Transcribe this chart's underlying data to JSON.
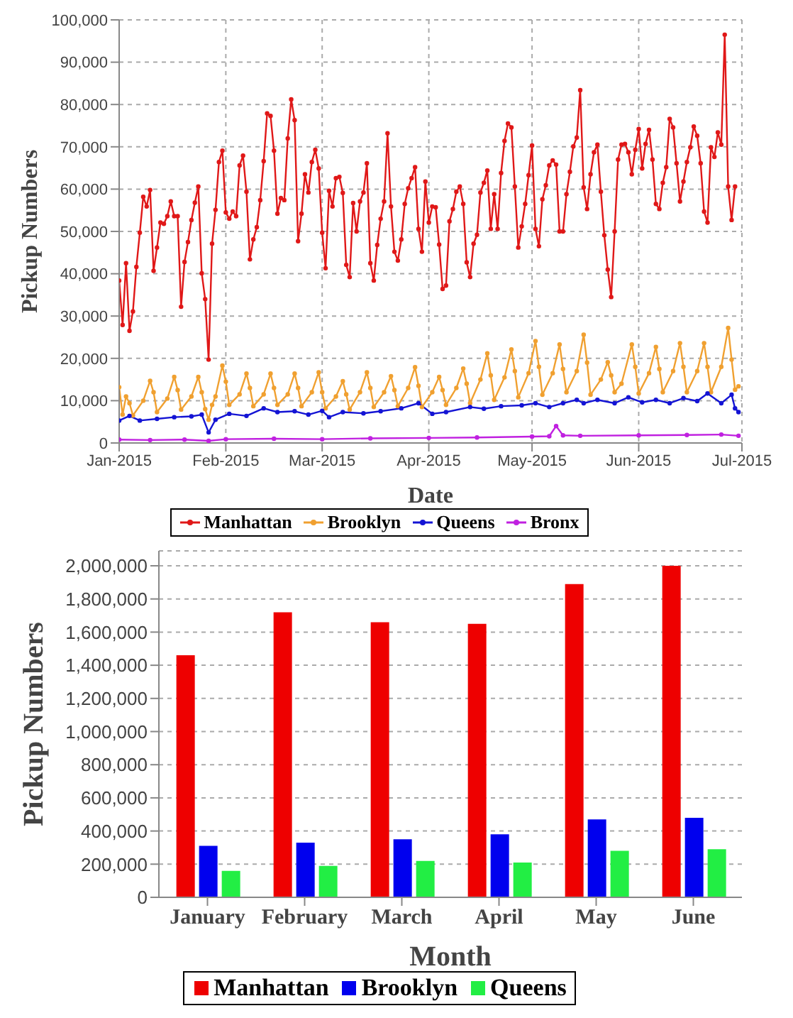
{
  "chart_data": [
    {
      "type": "line",
      "xlabel": "Date",
      "ylabel": "Pickup Numbers",
      "xlim": [
        "2015-01-01",
        "2015-07-01"
      ],
      "xticks": [
        {
          "value": "2015-01-01",
          "label": "Jan-2015"
        },
        {
          "value": "2015-02-01",
          "label": "Feb-2015"
        },
        {
          "value": "2015-03-01",
          "label": "Mar-2015"
        },
        {
          "value": "2015-04-01",
          "label": "Apr-2015"
        },
        {
          "value": "2015-05-01",
          "label": "May-2015"
        },
        {
          "value": "2015-06-01",
          "label": "Jun-2015"
        },
        {
          "value": "2015-07-01",
          "label": "Jul-2015"
        }
      ],
      "ylim": [
        0,
        100000
      ],
      "yticks": [
        0,
        {
          "value": 10000,
          "label": "10,000"
        },
        {
          "value": 20000,
          "label": "20,000"
        },
        {
          "value": 30000,
          "label": "30,000"
        },
        {
          "value": 40000,
          "label": "40,000"
        },
        {
          "value": 50000,
          "label": "50,000"
        },
        {
          "value": 60000,
          "label": "60,000"
        },
        {
          "value": 70000,
          "label": "70,000"
        },
        {
          "value": 80000,
          "label": "80,000"
        },
        {
          "value": 90000,
          "label": "90,000"
        },
        {
          "value": 100000,
          "label": "100,000"
        }
      ],
      "grid": true,
      "legend": "bottom",
      "marker": "circle",
      "x": [
        "2015-01-01",
        "2015-01-02",
        "2015-01-03",
        "2015-01-04",
        "2015-01-05",
        "2015-01-06",
        "2015-01-07",
        "2015-01-08",
        "2015-01-09",
        "2015-01-10",
        "2015-01-11",
        "2015-01-12",
        "2015-01-13",
        "2015-01-14",
        "2015-01-15",
        "2015-01-16",
        "2015-01-17",
        "2015-01-18",
        "2015-01-19",
        "2015-01-20",
        "2015-01-21",
        "2015-01-22",
        "2015-01-23",
        "2015-01-24",
        "2015-01-25",
        "2015-01-26",
        "2015-01-27",
        "2015-01-28",
        "2015-01-29",
        "2015-01-30",
        "2015-01-31",
        "2015-02-01",
        "2015-02-02",
        "2015-02-03",
        "2015-02-04",
        "2015-02-05",
        "2015-02-06",
        "2015-02-07",
        "2015-02-08",
        "2015-02-09",
        "2015-02-10",
        "2015-02-11",
        "2015-02-12",
        "2015-02-13",
        "2015-02-14",
        "2015-02-15",
        "2015-02-16",
        "2015-02-17",
        "2015-02-18",
        "2015-02-19",
        "2015-02-20",
        "2015-02-21",
        "2015-02-22",
        "2015-02-23",
        "2015-02-24",
        "2015-02-25",
        "2015-02-26",
        "2015-02-27",
        "2015-02-28",
        "2015-03-01",
        "2015-03-02",
        "2015-03-03",
        "2015-03-04",
        "2015-03-05",
        "2015-03-06",
        "2015-03-07",
        "2015-03-08",
        "2015-03-09",
        "2015-03-10",
        "2015-03-11",
        "2015-03-12",
        "2015-03-13",
        "2015-03-14",
        "2015-03-15",
        "2015-03-16",
        "2015-03-17",
        "2015-03-18",
        "2015-03-19",
        "2015-03-20",
        "2015-03-21",
        "2015-03-22",
        "2015-03-23",
        "2015-03-24",
        "2015-03-25",
        "2015-03-26",
        "2015-03-27",
        "2015-03-28",
        "2015-03-29",
        "2015-03-30",
        "2015-03-31",
        "2015-04-01",
        "2015-04-02",
        "2015-04-03",
        "2015-04-04",
        "2015-04-05",
        "2015-04-06",
        "2015-04-07",
        "2015-04-08",
        "2015-04-09",
        "2015-04-10",
        "2015-04-11",
        "2015-04-12",
        "2015-04-13",
        "2015-04-14",
        "2015-04-15",
        "2015-04-16",
        "2015-04-17",
        "2015-04-18",
        "2015-04-19",
        "2015-04-20",
        "2015-04-21",
        "2015-04-22",
        "2015-04-23",
        "2015-04-24",
        "2015-04-25",
        "2015-04-26",
        "2015-04-27",
        "2015-04-28",
        "2015-04-29",
        "2015-04-30",
        "2015-05-01",
        "2015-05-02",
        "2015-05-03",
        "2015-05-04",
        "2015-05-05",
        "2015-05-06",
        "2015-05-07",
        "2015-05-08",
        "2015-05-09",
        "2015-05-10",
        "2015-05-11",
        "2015-05-12",
        "2015-05-13",
        "2015-05-14",
        "2015-05-15",
        "2015-05-16",
        "2015-05-17",
        "2015-05-18",
        "2015-05-19",
        "2015-05-20",
        "2015-05-21",
        "2015-05-22",
        "2015-05-23",
        "2015-05-24",
        "2015-05-25",
        "2015-05-26",
        "2015-05-27",
        "2015-05-28",
        "2015-05-29",
        "2015-05-30",
        "2015-05-31",
        "2015-06-01",
        "2015-06-02",
        "2015-06-03",
        "2015-06-04",
        "2015-06-05",
        "2015-06-06",
        "2015-06-07",
        "2015-06-08",
        "2015-06-09",
        "2015-06-10",
        "2015-06-11",
        "2015-06-12",
        "2015-06-13",
        "2015-06-14",
        "2015-06-15",
        "2015-06-16",
        "2015-06-17",
        "2015-06-18",
        "2015-06-19",
        "2015-06-20",
        "2015-06-21",
        "2015-06-22",
        "2015-06-23",
        "2015-06-24",
        "2015-06-25",
        "2015-06-26",
        "2015-06-27",
        "2015-06-28",
        "2015-06-29"
      ],
      "series": [
        {
          "name": "Manhattan",
          "color": "#e01818",
          "values": [
            38400,
            27900,
            42500,
            26500,
            31100,
            41600,
            49700,
            58200,
            55900,
            59800,
            40700,
            46200,
            52100,
            51800,
            53600,
            57100,
            53600,
            53600,
            32200,
            42800,
            47500,
            52700,
            56800,
            60600,
            40100,
            34000,
            19700,
            47100,
            55100,
            66400,
            69100,
            54500,
            53000,
            54700,
            53600,
            65600,
            67900,
            59400,
            43400,
            48100,
            51000,
            57400,
            66600,
            77900,
            77300,
            69100,
            54200,
            57900,
            57400,
            72000,
            81200,
            76300,
            47700,
            54200,
            63500,
            59200,
            66400,
            69300,
            64900,
            49700,
            41300,
            59600,
            55900,
            62600,
            62900,
            59100,
            42100,
            39200,
            56700,
            50000,
            57100,
            59200,
            66100,
            42500,
            38400,
            46800,
            53000,
            57100,
            73200,
            55900,
            45200,
            43100,
            48100,
            56500,
            60200,
            62600,
            65200,
            50600,
            45200,
            61800,
            52100,
            55900,
            55700,
            46900,
            36400,
            37200,
            52400,
            55300,
            59400,
            60600,
            56500,
            42700,
            39200,
            47100,
            49200,
            59200,
            61500,
            64400,
            50600,
            58800,
            50600,
            63800,
            71400,
            75500,
            74600,
            60600,
            46200,
            51200,
            56500,
            63300,
            70300,
            50600,
            46500,
            57600,
            60900,
            65600,
            66800,
            65800,
            50000,
            50000,
            58800,
            64100,
            70100,
            72200,
            83400,
            60400,
            55300,
            63500,
            68700,
            70500,
            59400,
            49100,
            41000,
            34500,
            50000,
            67000,
            70500,
            70700,
            68700,
            63500,
            69300,
            74200,
            64900,
            70700,
            74000,
            67000,
            56500,
            55300,
            61500,
            65200,
            76600,
            74600,
            66100,
            57100,
            61800,
            66400,
            69900,
            74800,
            72600,
            66100,
            54700,
            52100,
            69900,
            67600,
            73400,
            70500,
            96500,
            60600,
            52700,
            60600
          ]
        },
        {
          "name": "Brooklyn",
          "color": "#f0a030",
          "x": [
            "2015-01-01",
            "2015-01-02",
            "2015-01-03",
            "2015-01-04",
            "2015-01-05",
            "2015-01-08",
            "2015-01-10",
            "2015-01-11",
            "2015-01-12",
            "2015-01-15",
            "2015-01-17",
            "2015-01-18",
            "2015-01-19",
            "2015-01-22",
            "2015-01-24",
            "2015-01-25",
            "2015-01-26",
            "2015-01-27",
            "2015-01-28",
            "2015-01-29",
            "2015-01-31",
            "2015-02-01",
            "2015-02-02",
            "2015-02-05",
            "2015-02-07",
            "2015-02-08",
            "2015-02-09",
            "2015-02-12",
            "2015-02-14",
            "2015-02-15",
            "2015-02-16",
            "2015-02-19",
            "2015-02-21",
            "2015-02-22",
            "2015-02-23",
            "2015-02-26",
            "2015-02-28",
            "2015-03-01",
            "2015-03-02",
            "2015-03-05",
            "2015-03-07",
            "2015-03-08",
            "2015-03-09",
            "2015-03-12",
            "2015-03-14",
            "2015-03-15",
            "2015-03-16",
            "2015-03-19",
            "2015-03-21",
            "2015-03-22",
            "2015-03-23",
            "2015-03-26",
            "2015-03-28",
            "2015-03-29",
            "2015-03-30",
            "2015-04-02",
            "2015-04-04",
            "2015-04-05",
            "2015-04-06",
            "2015-04-09",
            "2015-04-11",
            "2015-04-12",
            "2015-04-13",
            "2015-04-16",
            "2015-04-18",
            "2015-04-19",
            "2015-04-20",
            "2015-04-23",
            "2015-04-25",
            "2015-04-26",
            "2015-04-27",
            "2015-04-30",
            "2015-05-02",
            "2015-05-03",
            "2015-05-04",
            "2015-05-07",
            "2015-05-09",
            "2015-05-10",
            "2015-05-11",
            "2015-05-14",
            "2015-05-16",
            "2015-05-17",
            "2015-05-18",
            "2015-05-21",
            "2015-05-23",
            "2015-05-24",
            "2015-05-25",
            "2015-05-27",
            "2015-05-30",
            "2015-05-31",
            "2015-06-01",
            "2015-06-04",
            "2015-06-06",
            "2015-06-07",
            "2015-06-08",
            "2015-06-11",
            "2015-06-13",
            "2015-06-14",
            "2015-06-15",
            "2015-06-18",
            "2015-06-20",
            "2015-06-21",
            "2015-06-22",
            "2015-06-25",
            "2015-06-27",
            "2015-06-28",
            "2015-06-29",
            "2015-06-30"
          ],
          "values": [
            13200,
            6700,
            11000,
            9400,
            6500,
            10000,
            14700,
            12000,
            7300,
            10500,
            15600,
            12500,
            7900,
            11000,
            15600,
            12000,
            8000,
            5500,
            9000,
            11000,
            18300,
            14500,
            9000,
            11500,
            16400,
            13000,
            8700,
            11500,
            16400,
            13000,
            9000,
            11500,
            16400,
            13000,
            8700,
            12000,
            16700,
            12000,
            8200,
            11000,
            14600,
            11500,
            7900,
            12000,
            16700,
            13000,
            8500,
            12000,
            15800,
            12500,
            8700,
            13000,
            17900,
            13500,
            8500,
            12000,
            15600,
            12500,
            9000,
            13000,
            17600,
            14000,
            9400,
            15000,
            21200,
            16000,
            10200,
            15500,
            22100,
            17000,
            10800,
            16500,
            24100,
            18000,
            11400,
            16500,
            23300,
            17500,
            12000,
            17000,
            25600,
            19000,
            11400,
            15000,
            19100,
            16000,
            12000,
            14000,
            23300,
            18000,
            11700,
            16500,
            22700,
            17500,
            12000,
            17000,
            23600,
            18000,
            12000,
            17000,
            23600,
            18000,
            12000,
            18000,
            27200,
            19700,
            12600,
            13400
          ]
        },
        {
          "name": "Queens",
          "color": "#1414d4",
          "x": [
            "2015-01-01",
            "2015-01-04",
            "2015-01-07",
            "2015-01-12",
            "2015-01-17",
            "2015-01-22",
            "2015-01-25",
            "2015-01-27",
            "2015-01-29",
            "2015-02-02",
            "2015-02-07",
            "2015-02-12",
            "2015-02-16",
            "2015-02-21",
            "2015-02-25",
            "2015-03-01",
            "2015-03-03",
            "2015-03-07",
            "2015-03-13",
            "2015-03-18",
            "2015-03-24",
            "2015-03-29",
            "2015-04-02",
            "2015-04-06",
            "2015-04-13",
            "2015-04-17",
            "2015-04-22",
            "2015-04-28",
            "2015-05-02",
            "2015-05-06",
            "2015-05-10",
            "2015-05-14",
            "2015-05-16",
            "2015-05-20",
            "2015-05-25",
            "2015-05-29",
            "2015-06-02",
            "2015-06-06",
            "2015-06-10",
            "2015-06-14",
            "2015-06-18",
            "2015-06-21",
            "2015-06-25",
            "2015-06-28",
            "2015-06-29",
            "2015-06-30"
          ],
          "values": [
            5300,
            6400,
            5300,
            5700,
            6100,
            6300,
            6700,
            2500,
            5500,
            6900,
            6400,
            8200,
            7300,
            7500,
            6700,
            7600,
            6100,
            7300,
            7000,
            7500,
            8200,
            9400,
            6900,
            7300,
            8500,
            8100,
            8700,
            8900,
            9400,
            8500,
            9400,
            10200,
            9400,
            10200,
            9400,
            10800,
            9600,
            10200,
            9400,
            10600,
            9900,
            11700,
            9400,
            11400,
            8200,
            7300
          ]
        },
        {
          "name": "Bronx",
          "color": "#c020e0",
          "x": [
            "2015-01-01",
            "2015-01-10",
            "2015-01-20",
            "2015-01-27",
            "2015-02-01",
            "2015-02-15",
            "2015-03-01",
            "2015-03-15",
            "2015-04-01",
            "2015-04-15",
            "2015-05-01",
            "2015-05-06",
            "2015-05-08",
            "2015-05-10",
            "2015-05-15",
            "2015-06-01",
            "2015-06-15",
            "2015-06-25",
            "2015-06-30"
          ],
          "values": [
            800,
            700,
            800,
            500,
            900,
            1000,
            900,
            1100,
            1200,
            1300,
            1500,
            1600,
            4000,
            1800,
            1700,
            1800,
            1900,
            2000,
            1700
          ]
        }
      ]
    },
    {
      "type": "bar",
      "xlabel": "Month",
      "ylabel": "Pickup Numbers",
      "categories": [
        "January",
        "February",
        "March",
        "April",
        "May",
        "June"
      ],
      "ylim": [
        0,
        2090000
      ],
      "yticks": [
        0,
        {
          "value": 200000,
          "label": "200,000"
        },
        {
          "value": 400000,
          "label": "400,000"
        },
        {
          "value": 600000,
          "label": "600,000"
        },
        {
          "value": 800000,
          "label": "800,000"
        },
        {
          "value": 1000000,
          "label": "1,000,000"
        },
        {
          "value": 1200000,
          "label": "1,200,000"
        },
        {
          "value": 1400000,
          "label": "1,400,000"
        },
        {
          "value": 1600000,
          "label": "1,600,000"
        },
        {
          "value": 1800000,
          "label": "1,800,000"
        },
        {
          "value": 2000000,
          "label": "2,000,000"
        }
      ],
      "grid": "y",
      "legend": "bottom",
      "series": [
        {
          "name": "Manhattan",
          "color": "#ee0000",
          "values": [
            1460000,
            1720000,
            1660000,
            1650000,
            1890000,
            2000000
          ]
        },
        {
          "name": "Brooklyn",
          "color": "#0000ee",
          "values": [
            310000,
            330000,
            350000,
            380000,
            470000,
            480000
          ]
        },
        {
          "name": "Queens",
          "color": "#22ee44",
          "values": [
            160000,
            190000,
            220000,
            210000,
            280000,
            290000
          ]
        }
      ]
    }
  ]
}
